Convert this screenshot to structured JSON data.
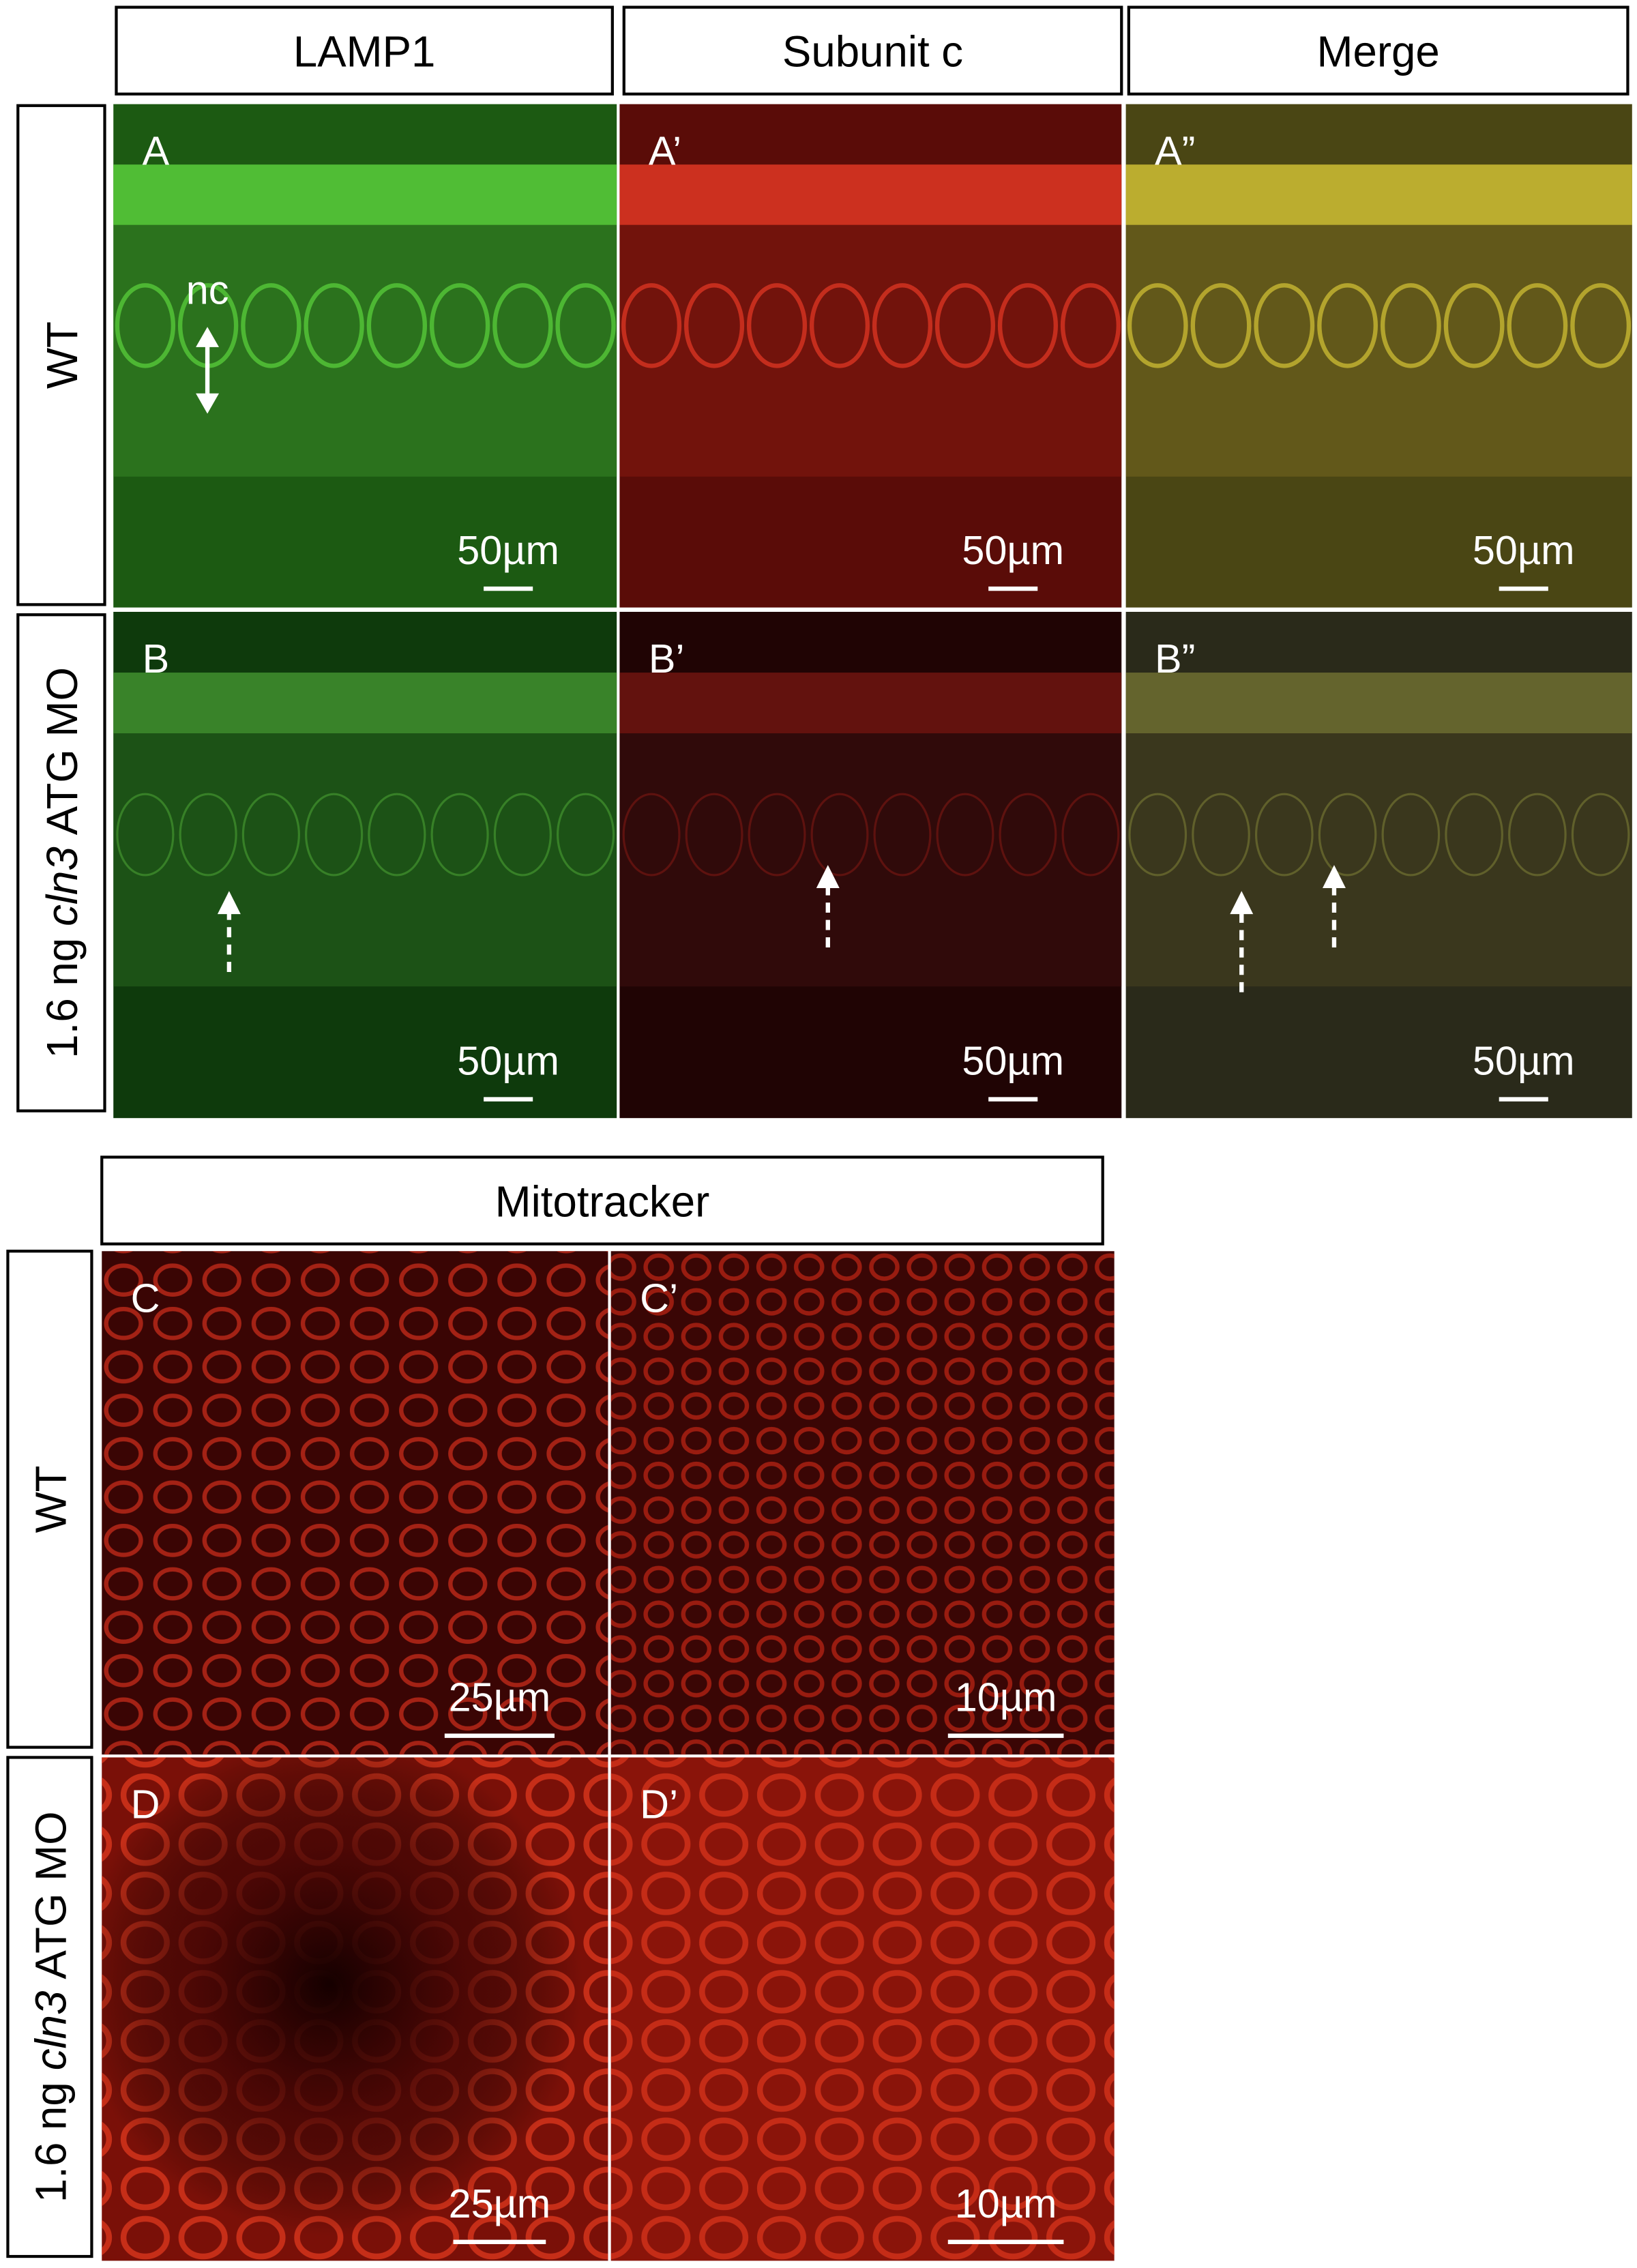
{
  "top": {
    "column_headers": [
      "LAMP1",
      "Subunit c",
      "Merge"
    ],
    "row_labels": [
      [
        "WT"
      ],
      [
        "1.6 ng",
        "cln3",
        "ATG MO"
      ]
    ],
    "annotation": "nc",
    "panels": [
      {
        "label": "A",
        "scale_bar": "50µm"
      },
      {
        "label": "A’",
        "scale_bar": "50µm"
      },
      {
        "label": "A”",
        "scale_bar": "50µm"
      },
      {
        "label": "B",
        "scale_bar": "50µm"
      },
      {
        "label": "B’",
        "scale_bar": "50µm"
      },
      {
        "label": "B”",
        "scale_bar": "50µm"
      }
    ]
  },
  "bottom": {
    "column_header": "Mitotracker",
    "row_labels": [
      [
        "WT"
      ],
      [
        "1.6 ng",
        "cln3",
        "ATG MO"
      ]
    ],
    "panels": [
      {
        "label": "C",
        "scale_bar": "25µm"
      },
      {
        "label": "C’",
        "scale_bar": "10µm"
      },
      {
        "label": "D",
        "scale_bar": "25µm"
      },
      {
        "label": "D’",
        "scale_bar": "10µm"
      }
    ]
  }
}
